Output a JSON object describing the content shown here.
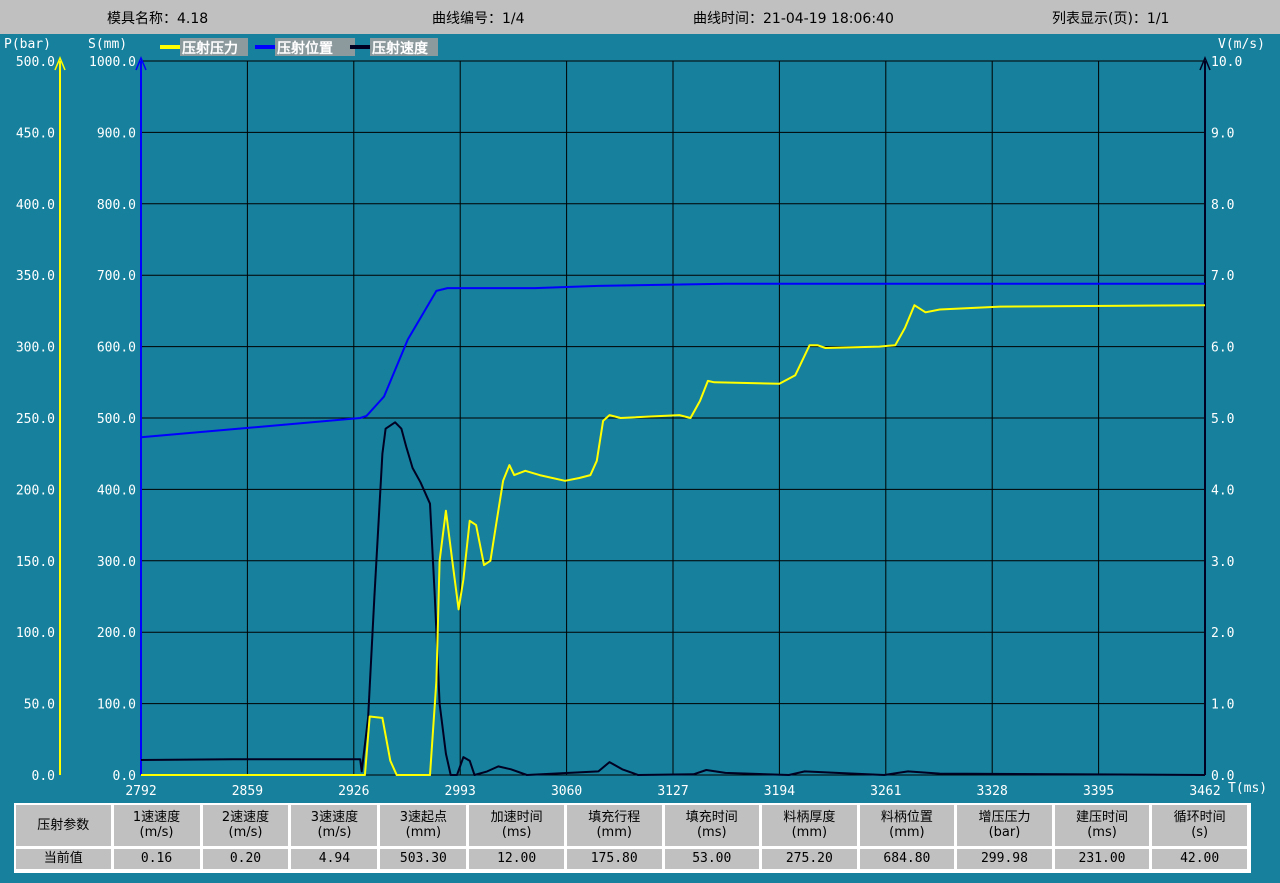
{
  "header": {
    "mold_name": "模具名称：4.18",
    "curve_number": "曲线编号：1/4",
    "curve_time": "曲线时间：21-04-19 18:06:40",
    "list_page": "列表显示(页)：1/1"
  },
  "colors": {
    "background": "#17809c",
    "pressure": "#ffff00",
    "position": "#0000ff",
    "velocity": "#000022",
    "header_bg": "#c0c0c0"
  },
  "chart_data": {
    "type": "line",
    "grid": true,
    "legend_placement": "top-left",
    "xlabel": "T(ms)",
    "xlim": [
      2792,
      3462
    ],
    "x_ticks": [
      "2792",
      "2859",
      "2926",
      "2993",
      "3060",
      "3127",
      "3194",
      "3261",
      "3328",
      "3395",
      "3462"
    ],
    "axes": {
      "pressure": {
        "label": "P(bar)",
        "lim": [
          0,
          500
        ],
        "ticks": [
          "0.0",
          "50.0",
          "100.0",
          "150.0",
          "200.0",
          "250.0",
          "300.0",
          "350.0",
          "400.0",
          "450.0",
          "500.0"
        ]
      },
      "position": {
        "label": "S(mm)",
        "lim": [
          0,
          1000
        ],
        "ticks": [
          "0.0",
          "100.0",
          "200.0",
          "300.0",
          "400.0",
          "500.0",
          "600.0",
          "700.0",
          "800.0",
          "900.0",
          "1000.0"
        ]
      },
      "velocity": {
        "label": "V(m/s)",
        "lim": [
          0,
          10
        ],
        "ticks": [
          "0.0",
          "1.0",
          "2.0",
          "3.0",
          "4.0",
          "5.0",
          "6.0",
          "7.0",
          "8.0",
          "9.0",
          "10.0"
        ]
      }
    },
    "series": [
      {
        "name": "压射压力",
        "axis": "pressure",
        "color": "#ffff00",
        "points": [
          [
            2792,
            0
          ],
          [
            2933,
            0
          ],
          [
            2936,
            41
          ],
          [
            2944,
            40
          ],
          [
            2949,
            10
          ],
          [
            2953,
            0
          ],
          [
            2974,
            0
          ],
          [
            2978,
            66
          ],
          [
            2980,
            150
          ],
          [
            2984,
            185
          ],
          [
            2988,
            150
          ],
          [
            2992,
            116
          ],
          [
            2995,
            137
          ],
          [
            2999,
            178
          ],
          [
            3003,
            175
          ],
          [
            3008,
            147
          ],
          [
            3012,
            150
          ],
          [
            3016,
            178
          ],
          [
            3020,
            206
          ],
          [
            3024,
            217
          ],
          [
            3027,
            210
          ],
          [
            3034,
            213
          ],
          [
            3043,
            210
          ],
          [
            3059,
            206
          ],
          [
            3068,
            208
          ],
          [
            3075,
            210
          ],
          [
            3079,
            220
          ],
          [
            3083,
            248
          ],
          [
            3087,
            252
          ],
          [
            3094,
            250
          ],
          [
            3131,
            252
          ],
          [
            3138,
            250
          ],
          [
            3144,
            262
          ],
          [
            3149,
            276
          ],
          [
            3153,
            275
          ],
          [
            3194,
            274
          ],
          [
            3204,
            280
          ],
          [
            3213,
            301
          ],
          [
            3218,
            301
          ],
          [
            3223,
            299
          ],
          [
            3257,
            300
          ],
          [
            3267,
            301
          ],
          [
            3273,
            313
          ],
          [
            3279,
            329
          ],
          [
            3286,
            324
          ],
          [
            3295,
            326
          ],
          [
            3333,
            328
          ],
          [
            3462,
            329
          ]
        ]
      },
      {
        "name": "压射位置",
        "axis": "position",
        "color": "#0000ff",
        "points": [
          [
            2792,
            473
          ],
          [
            2930,
            500
          ],
          [
            2934,
            503
          ],
          [
            2945,
            530
          ],
          [
            2960,
            610
          ],
          [
            2978,
            678
          ],
          [
            2985,
            682
          ],
          [
            3040,
            682
          ],
          [
            3080,
            685
          ],
          [
            3160,
            688
          ],
          [
            3462,
            688
          ]
        ]
      },
      {
        "name": "压射速度",
        "axis": "velocity",
        "color": "#000022",
        "points": [
          [
            2792,
            0.21
          ],
          [
            2850,
            0.22
          ],
          [
            2930,
            0.22
          ],
          [
            2931,
            0.05
          ],
          [
            2935,
            0.8
          ],
          [
            2939,
            2.5
          ],
          [
            2944,
            4.5
          ],
          [
            2946,
            4.85
          ],
          [
            2952,
            4.94
          ],
          [
            2956,
            4.85
          ],
          [
            2959,
            4.6
          ],
          [
            2963,
            4.3
          ],
          [
            2968,
            4.1
          ],
          [
            2974,
            3.8
          ],
          [
            2977,
            2.5
          ],
          [
            2980,
            1.0
          ],
          [
            2984,
            0.3
          ],
          [
            2987,
            0
          ],
          [
            2991,
            0
          ],
          [
            2995,
            0.25
          ],
          [
            2999,
            0.2
          ],
          [
            3002,
            0
          ],
          [
            3010,
            0.05
          ],
          [
            3017,
            0.12
          ],
          [
            3025,
            0.08
          ],
          [
            3035,
            0
          ],
          [
            3080,
            0.05
          ],
          [
            3087,
            0.18
          ],
          [
            3095,
            0.08
          ],
          [
            3105,
            0
          ],
          [
            3140,
            0.01
          ],
          [
            3148,
            0.07
          ],
          [
            3160,
            0.03
          ],
          [
            3200,
            0
          ],
          [
            3210,
            0.05
          ],
          [
            3230,
            0.03
          ],
          [
            3260,
            0
          ],
          [
            3275,
            0.05
          ],
          [
            3295,
            0.02
          ],
          [
            3462,
            0
          ]
        ]
      }
    ]
  },
  "table": {
    "headers": [
      {
        "name": "压射参数",
        "unit": ""
      },
      {
        "name": "1速速度",
        "unit": "(m/s)"
      },
      {
        "name": "2速速度",
        "unit": "(m/s)"
      },
      {
        "name": "3速速度",
        "unit": "(m/s)"
      },
      {
        "name": "3速起点",
        "unit": "(mm)"
      },
      {
        "name": "加速时间",
        "unit": "(ms)"
      },
      {
        "name": "填充行程",
        "unit": "(mm)"
      },
      {
        "name": "填充时间",
        "unit": "(ms)"
      },
      {
        "name": "料柄厚度",
        "unit": "(mm)"
      },
      {
        "name": "料柄位置",
        "unit": "(mm)"
      },
      {
        "name": "增压压力",
        "unit": "(bar)"
      },
      {
        "name": "建压时间",
        "unit": "(ms)"
      },
      {
        "name": "循环时间",
        "unit": "(s)"
      }
    ],
    "row_label": "当前值",
    "values": [
      "0.16",
      "0.20",
      "4.94",
      "503.30",
      "12.00",
      "175.80",
      "53.00",
      "275.20",
      "684.80",
      "299.98",
      "231.00",
      "42.00"
    ]
  }
}
